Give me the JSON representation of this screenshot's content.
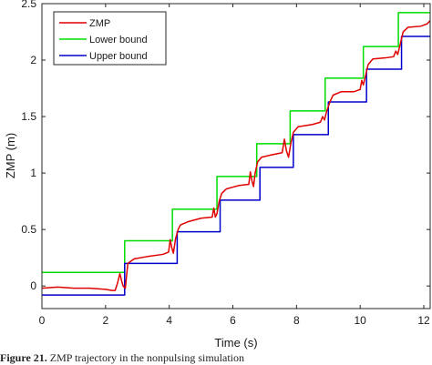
{
  "caption": {
    "label": "Figure 21.",
    "text": "ZMP trajectory in the nonpulsing simulation"
  },
  "chart_data": {
    "type": "line",
    "title": "",
    "xlabel": "Time (s)",
    "ylabel": "ZMP (m)",
    "xlim": [
      0,
      12.2
    ],
    "ylim": [
      -0.2,
      2.5
    ],
    "xticks": [
      0,
      2,
      4,
      6,
      8,
      10,
      12
    ],
    "yticks": [
      0,
      0.5,
      1,
      1.5,
      2,
      2.5
    ],
    "xtick_labels": [
      "0",
      "2",
      "4",
      "6",
      "8",
      "10",
      "12"
    ],
    "ytick_labels": [
      "0",
      "0.5",
      "1",
      "1.5",
      "2",
      "2.5"
    ],
    "grid": false,
    "legend_position": "top-left",
    "series": [
      {
        "name": "ZMP",
        "color": "#e00000",
        "x": [
          0,
          0.5,
          1.0,
          1.5,
          2.0,
          2.2,
          2.3,
          2.38,
          2.45,
          2.5,
          2.55,
          2.62,
          2.7,
          2.9,
          3.3,
          3.8,
          3.98,
          4.03,
          4.08,
          4.13,
          4.2,
          4.28,
          4.35,
          4.6,
          5.0,
          5.35,
          5.4,
          5.45,
          5.5,
          5.57,
          5.65,
          5.8,
          6.2,
          6.5,
          6.55,
          6.6,
          6.65,
          6.7,
          6.78,
          6.9,
          7.2,
          7.55,
          7.62,
          7.68,
          7.75,
          7.82,
          7.9,
          8.05,
          8.5,
          8.75,
          8.82,
          8.88,
          8.95,
          9.05,
          9.15,
          9.4,
          9.8,
          10.0,
          10.05,
          10.1,
          10.15,
          10.25,
          10.4,
          10.8,
          11.05,
          11.12,
          11.18,
          11.25,
          11.35,
          11.5,
          11.9,
          12.1,
          12.2
        ],
        "y": [
          -0.02,
          -0.01,
          -0.02,
          -0.02,
          -0.03,
          -0.04,
          -0.04,
          0.03,
          0.11,
          0.05,
          0.0,
          -0.02,
          0.2,
          0.24,
          0.26,
          0.28,
          0.3,
          0.41,
          0.34,
          0.29,
          0.42,
          0.5,
          0.54,
          0.57,
          0.6,
          0.61,
          0.69,
          0.61,
          0.64,
          0.75,
          0.82,
          0.86,
          0.89,
          0.9,
          1.01,
          0.93,
          0.88,
          1.0,
          1.1,
          1.14,
          1.16,
          1.18,
          1.3,
          1.2,
          1.14,
          1.26,
          1.36,
          1.41,
          1.43,
          1.45,
          1.5,
          1.47,
          1.55,
          1.63,
          1.69,
          1.72,
          1.72,
          1.74,
          1.82,
          1.78,
          1.84,
          1.96,
          2.01,
          2.02,
          2.03,
          2.08,
          2.05,
          2.13,
          2.25,
          2.29,
          2.3,
          2.32,
          2.35
        ]
      },
      {
        "name": "Lower bound",
        "color": "#00dd00",
        "step": true,
        "x": [
          0,
          2.6,
          4.1,
          5.5,
          6.75,
          7.8,
          8.9,
          10.1,
          11.2,
          12.2
        ],
        "y": [
          0.12,
          0.4,
          0.68,
          0.97,
          1.26,
          1.55,
          1.84,
          2.12,
          2.42,
          2.42
        ]
      },
      {
        "name": "Upper bound",
        "color": "#0000cc",
        "step": true,
        "x": [
          0,
          2.6,
          4.25,
          5.6,
          6.85,
          7.9,
          9.0,
          10.2,
          11.3,
          12.2
        ],
        "y": [
          -0.08,
          0.2,
          0.48,
          0.76,
          1.05,
          1.34,
          1.63,
          1.92,
          2.21,
          2.21
        ]
      }
    ]
  }
}
